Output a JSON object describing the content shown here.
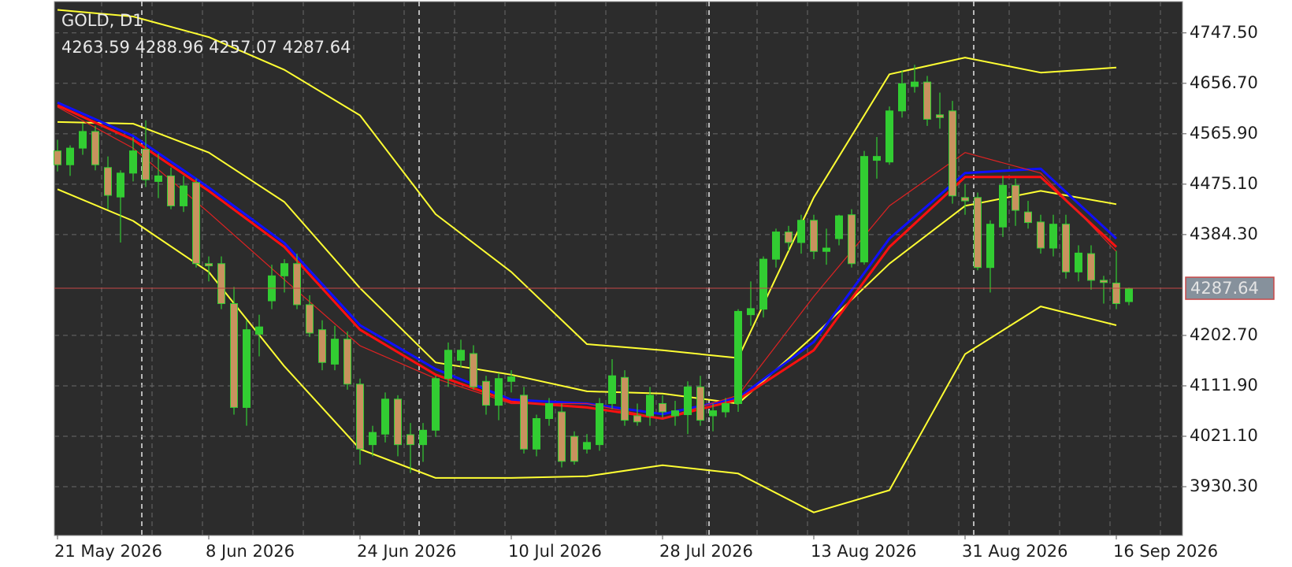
{
  "chart_data": {
    "type": "candlestick",
    "title": "GOLD, D1",
    "categories": [
      "21 May 2026",
      null,
      null,
      null,
      null,
      null,
      null,
      null,
      null,
      null,
      null,
      null,
      "8 Jun 2026",
      null,
      null,
      null,
      null,
      null,
      null,
      null,
      null,
      null,
      null,
      null,
      "24 Jun 2026",
      null,
      null,
      null,
      null,
      null,
      null,
      null,
      null,
      null,
      null,
      null,
      "10 Jul 2026",
      null,
      null,
      null,
      null,
      null,
      null,
      null,
      null,
      null,
      null,
      null,
      "28 Jul 2026",
      null,
      null,
      null,
      null,
      null,
      null,
      null,
      null,
      null,
      null,
      null,
      "13 Aug 2026",
      null,
      null,
      null,
      null,
      null,
      null,
      null,
      null,
      null,
      null,
      null,
      "31 Aug 2026",
      null,
      null,
      null,
      null,
      null,
      null,
      null,
      null,
      null,
      null,
      null,
      "16 Sep 2026",
      null
    ],
    "open": [
      4535,
      4510,
      4540,
      4570,
      4505,
      4452,
      4495,
      4538,
      4480,
      4490,
      4436,
      4478,
      4332,
      4332,
      4260,
      4073,
      4205,
      4265,
      4310,
      4332,
      4258,
      4213,
      4151,
      4196,
      4115,
      4006,
      4025,
      4088,
      4024,
      4006,
      4032,
      4125,
      4158,
      4170,
      4120,
      4077,
      4120,
      4095,
      3998,
      4053,
      4065,
      4021,
      3998,
      4006,
      4080,
      4127,
      4058,
      4058,
      4080,
      4058,
      4060,
      4110,
      4058,
      4065,
      4080,
      4240,
      4250,
      4340,
      4389,
      4370,
      4410,
      4354,
      4377,
      4420,
      4335,
      4518,
      4515,
      4607,
      4651,
      4659,
      4600,
      4607,
      4451,
      4451,
      4325,
      4398,
      4473,
      4425,
      4407,
      4360,
      4403,
      4317,
      4350,
      4302,
      4297,
      4263.59
    ],
    "high": [
      4555,
      4545,
      4585,
      4580,
      4525,
      4500,
      4560,
      4590,
      4530,
      4505,
      4490,
      4485,
      4345,
      4345,
      4290,
      4230,
      4240,
      4330,
      4340,
      4350,
      4275,
      4230,
      4220,
      4210,
      4125,
      4040,
      4100,
      4095,
      4045,
      4045,
      4130,
      4190,
      4195,
      4185,
      4130,
      4135,
      4140,
      4110,
      4060,
      4090,
      4080,
      4030,
      4025,
      4090,
      4160,
      4140,
      4080,
      4110,
      4095,
      4085,
      4120,
      4130,
      4080,
      4090,
      4250,
      4300,
      4345,
      4395,
      4400,
      4420,
      4420,
      4395,
      4420,
      4430,
      4535,
      4560,
      4615,
      4680,
      4690,
      4670,
      4640,
      4625,
      4475,
      4460,
      4410,
      4490,
      4485,
      4445,
      4420,
      4420,
      4420,
      4365,
      4365,
      4310,
      4355,
      4288.96
    ],
    "low": [
      4498,
      4490,
      4528,
      4500,
      4430,
      4370,
      4480,
      4470,
      4450,
      4430,
      4425,
      4325,
      4300,
      4250,
      4060,
      4040,
      4165,
      4250,
      4280,
      4250,
      4200,
      4140,
      4140,
      4105,
      3970,
      3985,
      4010,
      3985,
      3955,
      3975,
      4020,
      4110,
      4145,
      4105,
      4060,
      4050,
      4100,
      3990,
      3985,
      4040,
      3965,
      3970,
      3990,
      3995,
      4070,
      4040,
      4040,
      4040,
      4055,
      4040,
      4025,
      4040,
      4030,
      4055,
      4065,
      4220,
      4235,
      4325,
      4355,
      4350,
      4340,
      4330,
      4365,
      4325,
      4330,
      4485,
      4510,
      4595,
      4640,
      4580,
      4575,
      4440,
      4420,
      4320,
      4280,
      4380,
      4400,
      4395,
      4350,
      4345,
      4305,
      4300,
      4285,
      4260,
      4250,
      4257.07
    ],
    "close": [
      4510,
      4540,
      4570,
      4510,
      4455,
      4495,
      4535,
      4483,
      4490,
      4436,
      4472,
      4332,
      4328,
      4260,
      4073,
      4213,
      4218,
      4310,
      4332,
      4258,
      4207,
      4154,
      4196,
      4115,
      3998,
      4028,
      4088,
      4006,
      4006,
      4032,
      4125,
      4176,
      4176,
      4110,
      4077,
      4125,
      4128,
      3998,
      4053,
      4080,
      3976,
      3976,
      4010,
      4080,
      4130,
      4050,
      4047,
      4095,
      4065,
      4067,
      4110,
      4050,
      4067,
      4080,
      4246,
      4251,
      4340,
      4389,
      4370,
      4410,
      4354,
      4360,
      4418,
      4332,
      4525,
      4525,
      4607,
      4656,
      4659,
      4592,
      4595,
      4454,
      4445,
      4325,
      4403,
      4473,
      4428,
      4406,
      4360,
      4403,
      4317,
      4351,
      4302,
      4298,
      4260,
      4287.64
    ],
    "bull_color": "#32cd32",
    "bear_color": "#c8925e",
    "line_x": [
      0,
      6,
      12,
      18,
      24,
      30,
      36,
      42,
      48,
      54,
      60,
      66,
      72,
      78,
      84
    ],
    "lines": [
      {
        "color": "#ffff33",
        "weight": "normal",
        "values": [
          4789,
          4777,
          4740,
          4681,
          4599,
          4421,
          4317,
          4187,
          4176,
          4162,
          4451,
          4673,
          4703,
          4676,
          4685
        ]
      },
      {
        "color": "#ffff33",
        "weight": "normal",
        "values": [
          4587,
          4584,
          4532,
          4443,
          4288,
          4154,
          4132,
          4102,
          4098,
          4080,
          4202,
          4332,
          4436,
          4463,
          4439
        ]
      },
      {
        "color": "#ffff33",
        "weight": "normal",
        "values": [
          4466,
          4409,
          4317,
          4147,
          3998,
          3946,
          3946,
          3949,
          3969,
          3954,
          3884,
          3924,
          4169,
          4255,
          4221
        ]
      },
      {
        "color": "#1010ff",
        "weight": "thick",
        "values": [
          4622,
          4562,
          4469,
          4369,
          4221,
          4142,
          4087,
          4080,
          4061,
          4090,
          4191,
          4377,
          4495,
          4503,
          4377
        ]
      },
      {
        "color": "#ff1010",
        "weight": "thick",
        "values": [
          4617,
          4555,
          4463,
          4362,
          4213,
          4132,
          4083,
          4073,
          4053,
          4087,
          4176,
          4362,
          4488,
          4488,
          4362
        ]
      },
      {
        "color": "#e02222",
        "weight": "thin",
        "values": [
          4614,
          4540,
          4424,
          4303,
          4184,
          4125,
          4080,
          4080,
          4053,
          4095,
          4273,
          4436,
          4532,
          4495,
          4354
        ]
      }
    ],
    "ylim": [
      3842.4,
      4803.9
    ],
    "yticks": [
      {
        "value": 3930.3,
        "label": "3930.30"
      },
      {
        "value": 4021.1,
        "label": "4021.10"
      },
      {
        "value": 4111.9,
        "label": "4111.90"
      },
      {
        "value": 4202.7,
        "label": "4202.70"
      },
      {
        "value": 4384.3,
        "label": "4384.30"
      },
      {
        "value": 4475.1,
        "label": "4475.10"
      },
      {
        "value": 4565.9,
        "label": "4565.90"
      },
      {
        "value": 4656.7,
        "label": "4656.70"
      },
      {
        "value": 4747.5,
        "label": "4747.50"
      }
    ],
    "grid": true,
    "price_line_color": "#c84848"
  }
}
